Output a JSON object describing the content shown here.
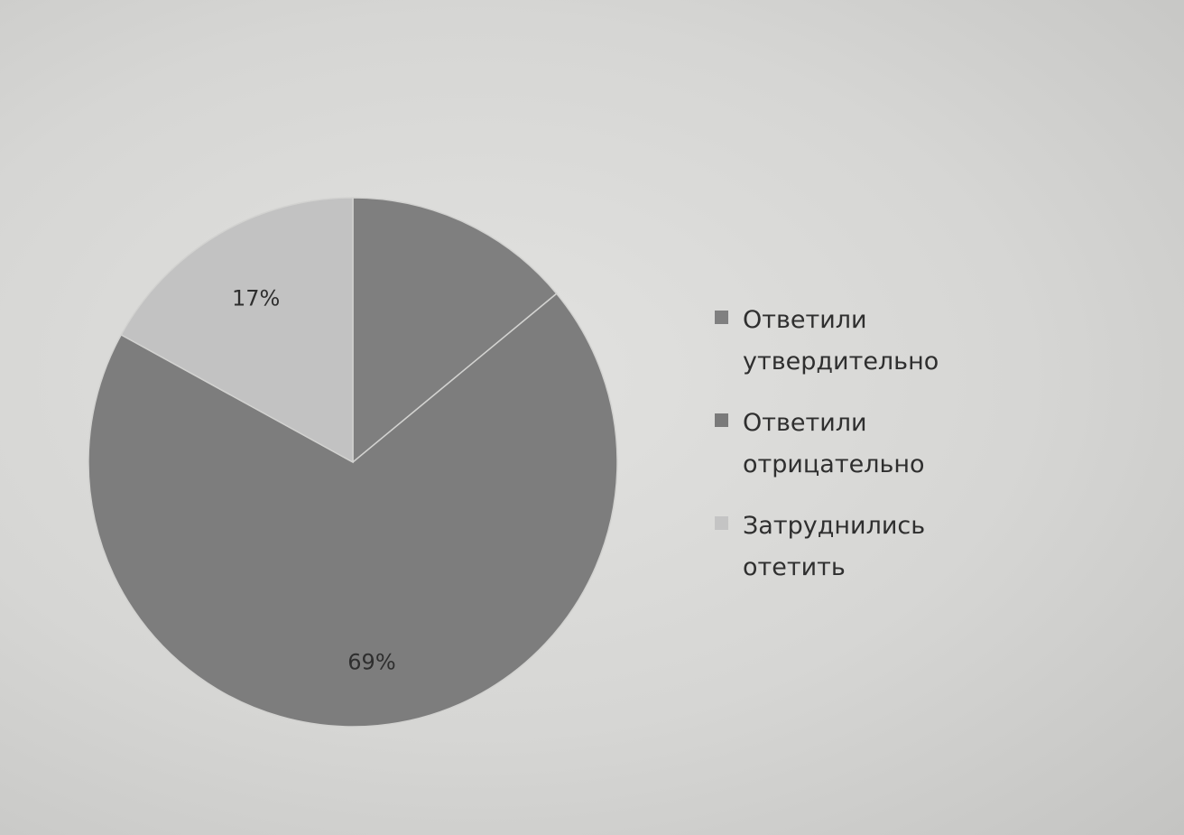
{
  "chart_data": {
    "type": "pie",
    "title": "",
    "categories": [
      "Ответили утвердительно",
      "Ответили отрицательно",
      "Затруднились отетить"
    ],
    "values": [
      14,
      69,
      17
    ],
    "data_labels": [
      "",
      "69%",
      "17%"
    ],
    "colors": [
      "#7f7f7f",
      "#7d7d7d",
      "#c2c2c2"
    ],
    "legend_position": "right"
  },
  "legend": {
    "items": [
      {
        "label": "Ответили утвердительно",
        "color": "#808080"
      },
      {
        "label": "Ответили отрицательно",
        "color": "#7a7a7a"
      },
      {
        "label": "Затруднились отетить",
        "color": "#c4c4c4"
      }
    ]
  }
}
